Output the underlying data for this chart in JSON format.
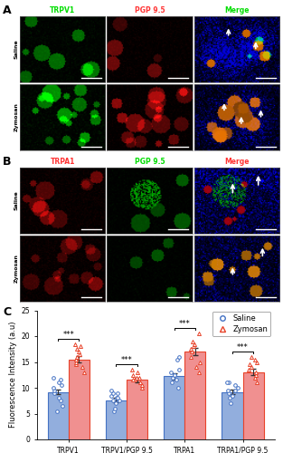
{
  "categories": [
    "TRPV1",
    "TRPV1/PGP 9.5",
    "TRPA1",
    "TRPA1/PGP 9.5"
  ],
  "saline_means": [
    9.2,
    7.6,
    12.2,
    9.2
  ],
  "zymosan_means": [
    15.5,
    11.5,
    17.0,
    13.0
  ],
  "saline_sems": [
    0.5,
    0.4,
    0.6,
    0.5
  ],
  "zymosan_sems": [
    0.6,
    0.5,
    0.7,
    0.6
  ],
  "saline_points": [
    [
      5.5,
      6.5,
      7.5,
      8.0,
      9.0,
      9.5,
      10.0,
      10.5,
      11.0,
      11.5,
      12.0
    ],
    [
      5.5,
      6.0,
      7.0,
      7.5,
      7.5,
      8.0,
      8.0,
      8.5,
      9.0,
      9.0,
      9.5
    ],
    [
      10.0,
      11.0,
      11.5,
      12.0,
      12.5,
      12.5,
      13.0,
      13.5,
      15.5,
      16.0
    ],
    [
      7.0,
      8.0,
      8.5,
      9.0,
      9.5,
      9.5,
      10.0,
      10.5,
      11.0,
      11.0
    ]
  ],
  "zymosan_points": [
    [
      13.0,
      14.0,
      14.5,
      15.0,
      15.5,
      16.0,
      16.5,
      17.0,
      17.5,
      18.0,
      18.5
    ],
    [
      10.0,
      10.5,
      11.0,
      11.5,
      11.5,
      12.0,
      12.0,
      12.5,
      13.0,
      13.5
    ],
    [
      13.0,
      14.0,
      15.0,
      16.0,
      17.0,
      17.5,
      18.0,
      18.5,
      19.0,
      20.5
    ],
    [
      11.0,
      12.0,
      12.5,
      13.0,
      13.5,
      14.0,
      14.5,
      15.0,
      15.5,
      16.0
    ]
  ],
  "saline_color": "#4472C4",
  "zymosan_color": "#E8432A",
  "saline_bar_color": "#92AEDD",
  "zymosan_bar_color": "#F09090",
  "ylabel": "Fluorescence Intensity (a.u)",
  "ylim": [
    0,
    25
  ],
  "yticks": [
    0,
    5,
    10,
    15,
    20,
    25
  ],
  "sig_label": "***",
  "bar_width": 0.35,
  "panel_A": "A",
  "panel_B": "B",
  "panel_C": "C",
  "legend_saline": "Saline",
  "legend_zymosan": "Zymosan",
  "col_headers_A": [
    "TRPV1",
    "PGP 9.5",
    "Merge"
  ],
  "col_header_colors_A": [
    "#00DD00",
    "#FF3333",
    "#00DD00"
  ],
  "col_headers_B": [
    "TRPA1",
    "PGP 9.5",
    "Merge"
  ],
  "col_header_colors_B": [
    "#FF3333",
    "#00DD00",
    "#FF3333"
  ],
  "merge_word_color_A": [
    "#00DD00",
    "#FF3333"
  ],
  "merge_word_color_B": [
    "#FF3333",
    "#00DD00"
  ],
  "row_labels": [
    "Saline",
    "Zymosan"
  ],
  "panel_label_fontsize": 9,
  "axis_fontsize": 6,
  "tick_fontsize": 5.5,
  "legend_fontsize": 6
}
